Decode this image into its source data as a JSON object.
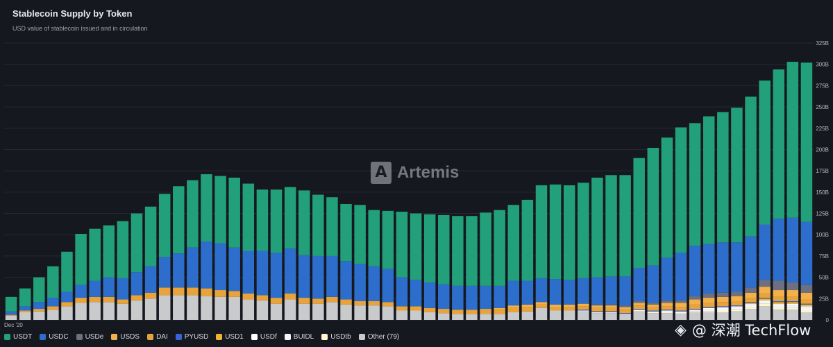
{
  "header": {
    "title": "Stablecoin Supply by Token",
    "subtitle": "USD value of stablecoin issued and in circulation"
  },
  "watermark": {
    "text": "Artemis"
  },
  "brand": {
    "text": "@ 深潮 TechFlow"
  },
  "chart_data": {
    "type": "bar",
    "stacked": true,
    "title": "Stablecoin Supply by Token",
    "subtitle": "USD value of stablecoin issued and in circulation",
    "y_axis_position": "right",
    "ylim": [
      0,
      325
    ],
    "yticks": [
      "0",
      "25B",
      "50B",
      "75B",
      "100B",
      "125B",
      "150B",
      "175B",
      "200B",
      "225B",
      "250B",
      "275B",
      "300B",
      "325B"
    ],
    "x_tick_labels": [
      "Dec '20"
    ],
    "grid": true,
    "legend_position": "bottom",
    "totals": [
      27,
      37,
      50,
      63,
      80,
      101,
      107,
      111,
      116,
      125,
      133,
      148,
      157,
      164,
      171,
      169,
      167,
      160,
      153,
      153,
      156,
      152,
      147,
      144,
      136,
      135,
      129,
      128,
      127,
      125,
      124,
      123,
      122,
      122,
      126,
      129,
      135,
      141,
      158,
      159,
      159,
      162,
      168,
      171,
      171,
      191,
      203,
      215,
      226,
      232,
      240,
      245,
      250,
      263,
      281,
      295,
      304,
      303
    ],
    "series": [
      {
        "name": "USDT",
        "color": "#22a079",
        "values": [
          17,
          21,
          29,
          37,
          47,
          60,
          61,
          61,
          67,
          69,
          70,
          74,
          79,
          79,
          79,
          79,
          82,
          79,
          72,
          74,
          72,
          76,
          72,
          69,
          67,
          69,
          66,
          68,
          77,
          78,
          80,
          81,
          82,
          82,
          86,
          89,
          89,
          95,
          109,
          111,
          111,
          112,
          117,
          119,
          119,
          129,
          138,
          141,
          147,
          144,
          150,
          153,
          158,
          164,
          169,
          175,
          183,
          187
        ]
      },
      {
        "name": "USDC",
        "color": "#2d6ecd",
        "values": [
          4,
          5,
          8,
          10,
          12,
          15,
          19,
          23,
          25,
          27,
          31,
          36,
          40,
          47,
          55,
          55,
          51,
          50,
          52,
          53,
          53,
          50,
          50,
          48,
          45,
          44,
          41,
          39,
          34,
          31,
          30,
          29,
          28,
          28,
          27,
          26,
          29,
          28,
          28,
          30,
          29,
          30,
          32,
          33,
          34,
          39,
          44,
          50,
          56,
          59,
          58,
          59,
          58,
          60,
          65,
          73,
          76,
          74
        ]
      },
      {
        "name": "USDe",
        "color": "#6d7080",
        "values": [
          0,
          0,
          0,
          0,
          0,
          0,
          0,
          0,
          0,
          0,
          0,
          0,
          0,
          0,
          0,
          0,
          0,
          0,
          0,
          0,
          0,
          0,
          0,
          0,
          0,
          0,
          0,
          0,
          0,
          0,
          0,
          0,
          0,
          0,
          0,
          0,
          0,
          0,
          0,
          0,
          0,
          0,
          1,
          1,
          2,
          2,
          2,
          3,
          3,
          4,
          5,
          5,
          5,
          6,
          8,
          11,
          9,
          9
        ]
      },
      {
        "name": "USDS",
        "color": "#f2b14a",
        "values": [
          0,
          0,
          0,
          0,
          0,
          0,
          0,
          0,
          0,
          0,
          0,
          0,
          0,
          0,
          0,
          0,
          0,
          0,
          0,
          0,
          0,
          0,
          0,
          0,
          0,
          0,
          0,
          0,
          0,
          0,
          0,
          0,
          0,
          0,
          1,
          2,
          3,
          3,
          3,
          3,
          3,
          3,
          3,
          3,
          3,
          3,
          3,
          4,
          5,
          6,
          6,
          6,
          6,
          6,
          8,
          8,
          8,
          8
        ]
      },
      {
        "name": "DAI",
        "color": "#e8a33a",
        "values": [
          1,
          2,
          3,
          4,
          5,
          6,
          6,
          6,
          5,
          6,
          7,
          9,
          9,
          9,
          9,
          8,
          7,
          7,
          6,
          7,
          7,
          7,
          6,
          6,
          6,
          5,
          5,
          5,
          5,
          5,
          5,
          5,
          5,
          5,
          5,
          5,
          5,
          5,
          4,
          4,
          4,
          4,
          4,
          4,
          4,
          4,
          4,
          4,
          4,
          5,
          5,
          5,
          5,
          5,
          5,
          5,
          5,
          5
        ]
      },
      {
        "name": "PYUSD",
        "color": "#3a63d6",
        "values": [
          0,
          0,
          0,
          0,
          0,
          0,
          0,
          0,
          0,
          0,
          0,
          0,
          0,
          0,
          0,
          0,
          0,
          0,
          0,
          0,
          0,
          0,
          0,
          0,
          0,
          0,
          0,
          0,
          0,
          0,
          0,
          0,
          0,
          0,
          0,
          0,
          0,
          0,
          0,
          0,
          0,
          1,
          1,
          1,
          1,
          1,
          1,
          1,
          1,
          1,
          1,
          1,
          1,
          1,
          1,
          1,
          1,
          1
        ]
      },
      {
        "name": "USD1",
        "color": "#f0b52e",
        "values": [
          0,
          0,
          0,
          0,
          0,
          0,
          0,
          0,
          0,
          0,
          0,
          0,
          0,
          0,
          0,
          0,
          0,
          0,
          0,
          0,
          0,
          0,
          0,
          0,
          0,
          0,
          0,
          0,
          0,
          0,
          0,
          0,
          0,
          0,
          0,
          0,
          0,
          0,
          0,
          0,
          0,
          0,
          0,
          0,
          0,
          0,
          0,
          0,
          0,
          0,
          0,
          0,
          0,
          1,
          2,
          2,
          2,
          2
        ]
      },
      {
        "name": "USDf",
        "color": "#ffffff",
        "values": [
          0,
          0,
          0,
          0,
          0,
          0,
          0,
          0,
          0,
          0,
          0,
          0,
          0,
          0,
          0,
          0,
          0,
          0,
          0,
          0,
          0,
          0,
          0,
          0,
          0,
          0,
          0,
          0,
          0,
          0,
          0,
          0,
          0,
          0,
          0,
          0,
          0,
          0,
          0,
          0,
          0,
          0,
          0,
          0,
          0,
          0,
          0,
          0,
          0,
          0,
          1,
          1,
          1,
          1,
          1,
          1,
          2,
          2
        ]
      },
      {
        "name": "BUIDL",
        "color": "#f5f5f5",
        "values": [
          0,
          0,
          0,
          0,
          0,
          0,
          0,
          0,
          0,
          0,
          0,
          0,
          0,
          0,
          0,
          0,
          0,
          0,
          0,
          0,
          0,
          0,
          0,
          0,
          0,
          0,
          0,
          0,
          0,
          0,
          0,
          0,
          0,
          0,
          0,
          0,
          0,
          0,
          0,
          0,
          0,
          1,
          1,
          1,
          1,
          1,
          1,
          2,
          2,
          2,
          3,
          3,
          3,
          3,
          3,
          3,
          3,
          3
        ]
      },
      {
        "name": "USDtb",
        "color": "#fff6d0",
        "values": [
          0,
          0,
          0,
          0,
          0,
          0,
          0,
          0,
          0,
          0,
          0,
          0,
          0,
          0,
          0,
          0,
          0,
          0,
          0,
          0,
          0,
          0,
          0,
          0,
          0,
          0,
          0,
          0,
          0,
          0,
          0,
          0,
          0,
          0,
          0,
          0,
          0,
          0,
          0,
          0,
          0,
          0,
          0,
          0,
          0,
          1,
          1,
          1,
          1,
          1,
          1,
          2,
          2,
          2,
          3,
          3,
          2,
          2
        ]
      },
      {
        "name": "Other (79)",
        "color": "#c9cacc",
        "values": [
          5,
          9,
          10,
          12,
          16,
          20,
          21,
          21,
          19,
          23,
          25,
          29,
          29,
          29,
          28,
          27,
          27,
          24,
          23,
          19,
          24,
          19,
          19,
          21,
          18,
          17,
          17,
          16,
          11,
          11,
          9,
          8,
          7,
          7,
          7,
          7,
          9,
          10,
          14,
          11,
          11,
          10,
          8,
          8,
          6,
          10,
          8,
          8,
          7,
          9,
          9,
          9,
          10,
          13,
          16,
          12,
          12,
          9
        ]
      }
    ]
  }
}
